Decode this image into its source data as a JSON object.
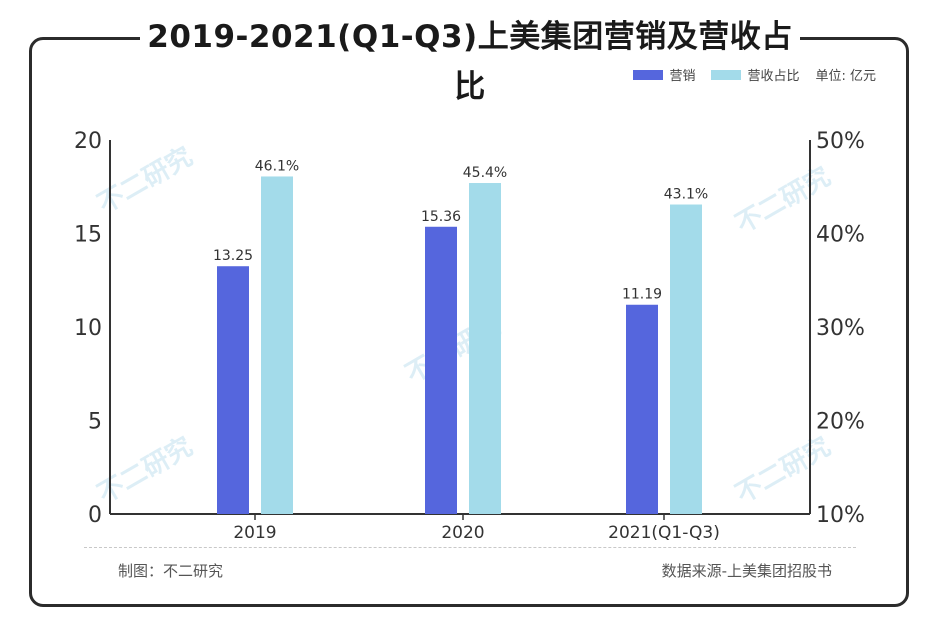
{
  "colors": {
    "marketing": "#5566dd",
    "ratio": "#a3dbea",
    "axis": "#333333"
  },
  "legend": {
    "marketing": "营销",
    "ratio": "营收占比",
    "unit": "单位: 亿元"
  },
  "footer": {
    "left": "制图：不二研究",
    "right": "数据来源-上美集团招股书"
  },
  "watermark": "不二研究",
  "chart_data": {
    "type": "bar",
    "title": "2019-2021(Q1-Q3)上美集团营销及营收占比",
    "categories": [
      "2019",
      "2020",
      "2021(Q1-Q3)"
    ],
    "series": [
      {
        "name": "营销",
        "axis": "left",
        "values": [
          13.25,
          15.36,
          11.19
        ],
        "labels": [
          "13.25",
          "15.36",
          "11.19"
        ]
      },
      {
        "name": "营收占比",
        "axis": "right",
        "values": [
          46.1,
          45.4,
          43.1
        ],
        "labels": [
          "46.1%",
          "45.4%",
          "43.1%"
        ]
      }
    ],
    "ylim_left": [
      0,
      20
    ],
    "yticks_left": [
      "0",
      "5",
      "10",
      "15",
      "20"
    ],
    "ylim_right": [
      10,
      50
    ],
    "yticks_right": [
      "10%",
      "20%",
      "30%",
      "40%",
      "50%"
    ]
  }
}
